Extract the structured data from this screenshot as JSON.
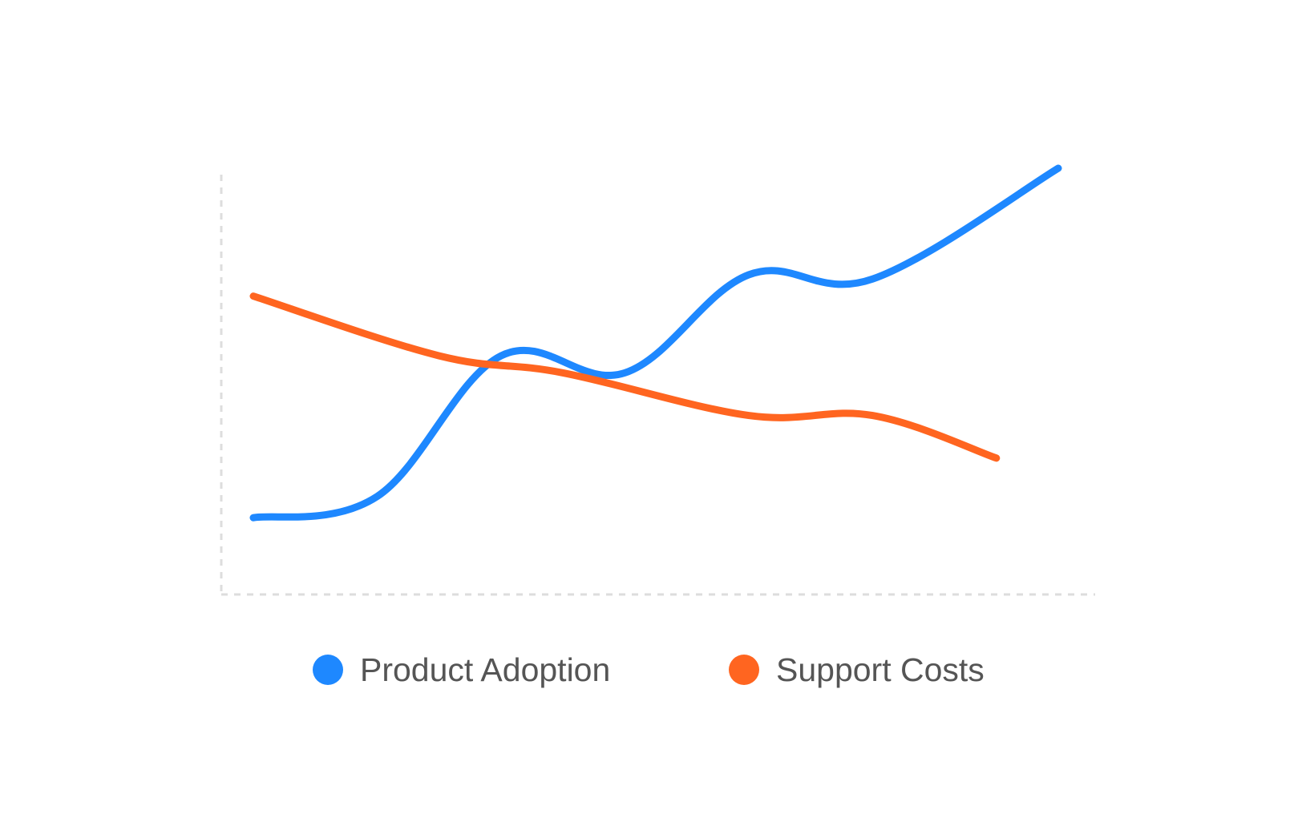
{
  "chart_data": {
    "type": "line",
    "title": "",
    "xlabel": "",
    "ylabel": "",
    "x": [
      1,
      2,
      3,
      4,
      5,
      6,
      7,
      8,
      9
    ],
    "ylim": [
      0,
      10
    ],
    "grid": false,
    "axes_style": "dashed",
    "legend_position": "bottom",
    "series": [
      {
        "name": "Product Adoption",
        "color": "#1E88FF",
        "values": [
          1.8,
          2.3,
          5.6,
          5.2,
          7.5,
          7.4,
          10.0
        ],
        "x": [
          1,
          2,
          3,
          4,
          5,
          6,
          7.5
        ]
      },
      {
        "name": "Support Costs",
        "color": "#FF6520",
        "values": [
          7.0,
          5.6,
          5.2,
          4.2,
          4.2,
          3.2
        ],
        "x": [
          1,
          2.5,
          3.5,
          5,
          6,
          7
        ]
      }
    ]
  }
}
